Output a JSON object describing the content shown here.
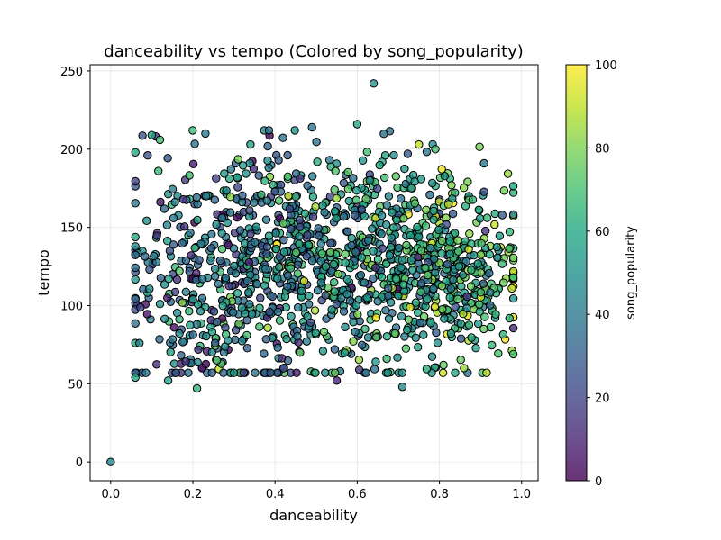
{
  "chart_data": {
    "type": "scatter",
    "title": "danceability vs tempo (Colored by song_popularity)",
    "xlabel": "danceability",
    "ylabel": "tempo",
    "xlim": [
      -0.05,
      1.04
    ],
    "ylim": [
      -12,
      254
    ],
    "xticks": [
      0.0,
      0.2,
      0.4,
      0.6,
      0.8,
      1.0
    ],
    "xtick_labels": [
      "0.0",
      "0.2",
      "0.4",
      "0.6",
      "0.8",
      "1.0"
    ],
    "yticks": [
      0,
      50,
      100,
      150,
      200,
      250
    ],
    "ytick_labels": [
      "0",
      "50",
      "100",
      "150",
      "200",
      "250"
    ],
    "grid": true,
    "colormap": "viridis",
    "colorbar": {
      "label": "song_popularity",
      "range": [
        0,
        100
      ],
      "ticks": [
        0,
        20,
        40,
        60,
        80,
        100
      ],
      "tick_labels": [
        "0",
        "20",
        "40",
        "60",
        "80",
        "100"
      ]
    },
    "marker_edge_color": "#000000",
    "marker_alpha": 0.8,
    "point_count_estimate": 1400,
    "points": [
      {
        "x": 0.0,
        "y": 0,
        "c": 45
      },
      {
        "x": 0.64,
        "y": 242,
        "c": 50
      },
      {
        "x": 0.71,
        "y": 48,
        "c": 45
      },
      {
        "x": 0.21,
        "y": 47,
        "c": 65
      },
      {
        "x": 0.55,
        "y": 52,
        "c": 10
      },
      {
        "x": 0.06,
        "y": 54,
        "c": 60
      },
      {
        "x": 0.14,
        "y": 52,
        "c": 55
      },
      {
        "x": 0.06,
        "y": 198,
        "c": 60
      },
      {
        "x": 0.1,
        "y": 209,
        "c": 60
      },
      {
        "x": 0.12,
        "y": 206,
        "c": 70
      },
      {
        "x": 0.09,
        "y": 196,
        "c": 25
      },
      {
        "x": 0.6,
        "y": 216,
        "c": 60
      },
      {
        "x": 0.49,
        "y": 214,
        "c": 40
      },
      {
        "x": 0.75,
        "y": 203,
        "c": 90
      },
      {
        "x": 0.98,
        "y": 118,
        "c": 70
      },
      {
        "x": 0.86,
        "y": 60,
        "c": 85
      },
      {
        "x": 0.81,
        "y": 62,
        "c": 75
      },
      {
        "x": 0.12,
        "y": 101,
        "c": 50
      },
      {
        "x": 0.07,
        "y": 76,
        "c": 45
      },
      {
        "x": 0.79,
        "y": 200,
        "c": 70
      }
    ],
    "density_regions": [
      {
        "x_center": 0.5,
        "x_spread": 0.2,
        "y_center": 130,
        "y_spread": 35,
        "share": 0.6
      },
      {
        "x_center": 0.82,
        "x_spread": 0.09,
        "y_center": 120,
        "y_spread": 28,
        "share": 0.25
      },
      {
        "x_center": 0.25,
        "x_spread": 0.1,
        "y_center": 110,
        "y_spread": 45,
        "share": 0.15
      }
    ]
  }
}
